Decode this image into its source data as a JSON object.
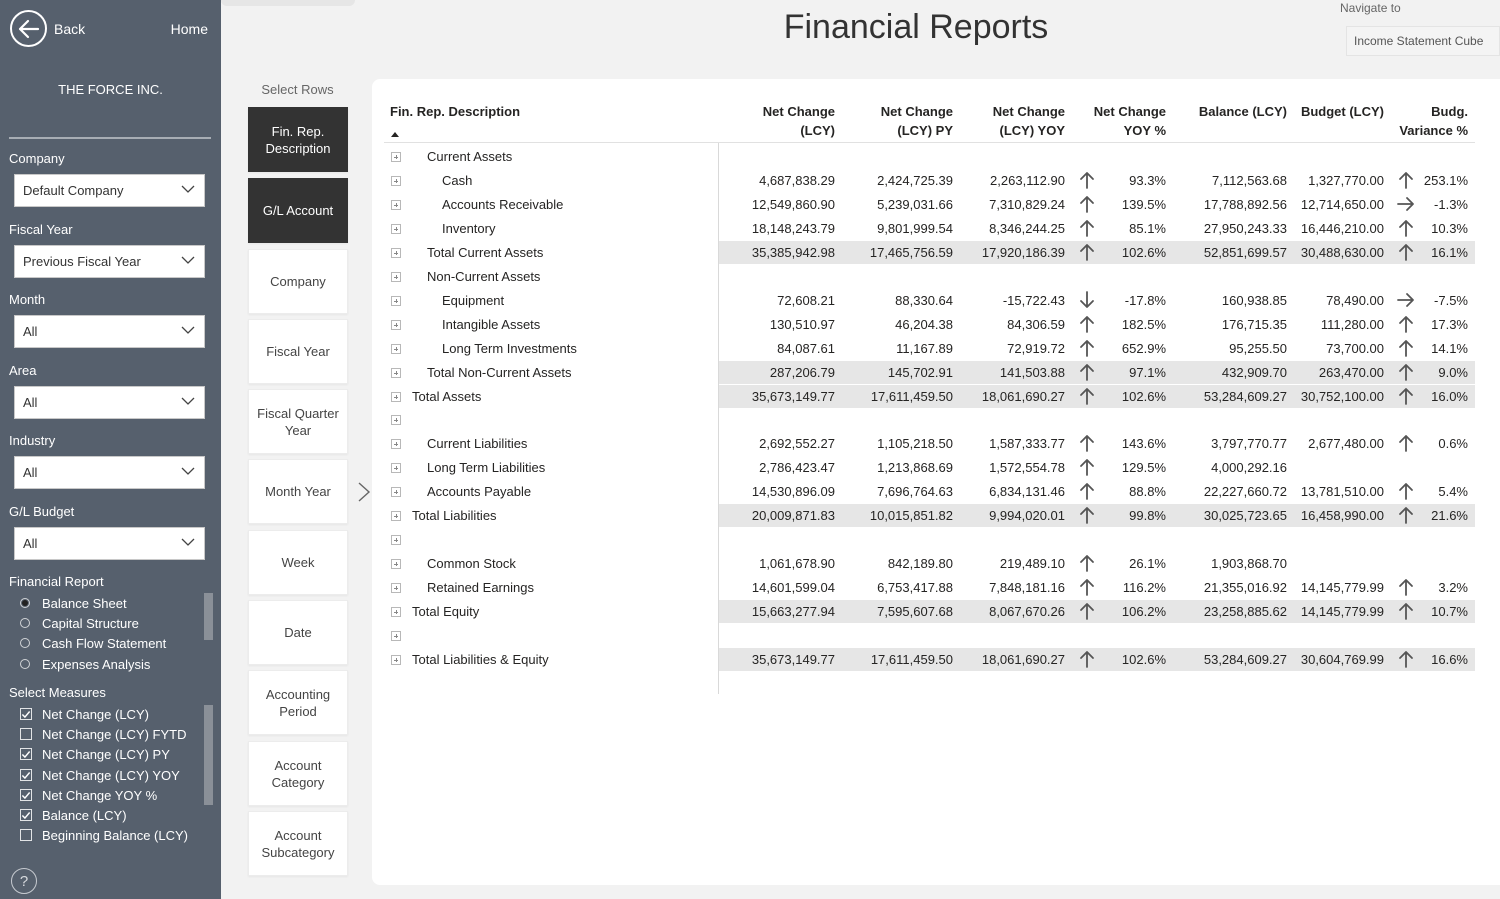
{
  "sidebar": {
    "back_label": "Back",
    "home_label": "Home",
    "company_name": "THE FORCE INC.",
    "filters": [
      {
        "label": "Company",
        "value": "Default Company"
      },
      {
        "label": "Fiscal Year",
        "value": "Previous Fiscal Year"
      },
      {
        "label": "Month",
        "value": "All"
      },
      {
        "label": "Area",
        "value": "All"
      },
      {
        "label": "Industry",
        "value": "All"
      },
      {
        "label": "G/L Budget",
        "value": "All"
      }
    ],
    "financial_report_label": "Financial Report",
    "financial_reports": [
      {
        "label": "Balance Sheet",
        "selected": true
      },
      {
        "label": "Capital Structure",
        "selected": false
      },
      {
        "label": "Cash Flow Statement",
        "selected": false
      },
      {
        "label": "Expenses Analysis",
        "selected": false
      }
    ],
    "select_measures_label": "Select Measures",
    "measures": [
      {
        "label": "Net Change (LCY)",
        "checked": true
      },
      {
        "label": "Net Change (LCY) FYTD",
        "checked": false
      },
      {
        "label": "Net Change (LCY) PY",
        "checked": true
      },
      {
        "label": "Net Change (LCY) YOY",
        "checked": true
      },
      {
        "label": "Net Change YOY %",
        "checked": true
      },
      {
        "label": "Balance (LCY)",
        "checked": true
      },
      {
        "label": "Beginning Balance (LCY)",
        "checked": false
      }
    ],
    "help_glyph": "?"
  },
  "header": {
    "title": "Financial Reports",
    "navigate_label": "Navigate to",
    "navigate_value": "Income Statement Cube"
  },
  "select_rows": {
    "label": "Select Rows",
    "buttons": [
      {
        "label": "Fin. Rep. Description",
        "selected": true
      },
      {
        "label": "G/L Account",
        "selected": true
      },
      {
        "label": "Company",
        "selected": false
      },
      {
        "label": "Fiscal Year",
        "selected": false
      },
      {
        "label": "Fiscal Quarter Year",
        "selected": false
      },
      {
        "label": "Month Year",
        "selected": false
      },
      {
        "label": "Week",
        "selected": false
      },
      {
        "label": "Date",
        "selected": false
      },
      {
        "label": "Accounting Period",
        "selected": false
      },
      {
        "label": "Account Category",
        "selected": false
      },
      {
        "label": "Account Subcategory",
        "selected": false
      }
    ]
  },
  "matrix": {
    "columns": [
      "Fin. Rep. Description",
      "Net Change (LCY)",
      "Net Change (LCY) PY",
      "Net Change (LCY) YOY",
      "Net Change YOY %",
      "Balance (LCY)",
      "Budget (LCY)",
      "Budg. Variance %"
    ],
    "rows": [
      {
        "desc": "Current Assets",
        "level": 1,
        "total": false,
        "nc": "",
        "py": "",
        "yoy": "",
        "yoy_arrow": "",
        "yoy_pct": "",
        "bal": "",
        "bud": "",
        "bud_arrow": "",
        "var": ""
      },
      {
        "desc": "Cash",
        "level": 2,
        "total": false,
        "nc": "4,687,838.29",
        "py": "2,424,725.39",
        "yoy": "2,263,112.90",
        "yoy_arrow": "up",
        "yoy_pct": "93.3%",
        "bal": "7,112,563.68",
        "bud": "1,327,770.00",
        "bud_arrow": "up",
        "var": "253.1%"
      },
      {
        "desc": "Accounts Receivable",
        "level": 2,
        "total": false,
        "nc": "12,549,860.90",
        "py": "5,239,031.66",
        "yoy": "7,310,829.24",
        "yoy_arrow": "up",
        "yoy_pct": "139.5%",
        "bal": "17,788,892.56",
        "bud": "12,714,650.00",
        "bud_arrow": "right",
        "var": "-1.3%"
      },
      {
        "desc": "Inventory",
        "level": 2,
        "total": false,
        "nc": "18,148,243.79",
        "py": "9,801,999.54",
        "yoy": "8,346,244.25",
        "yoy_arrow": "up",
        "yoy_pct": "85.1%",
        "bal": "27,950,243.33",
        "bud": "16,446,210.00",
        "bud_arrow": "up",
        "var": "10.3%"
      },
      {
        "desc": "Total Current Assets",
        "level": 1,
        "total": true,
        "nc": "35,385,942.98",
        "py": "17,465,756.59",
        "yoy": "17,920,186.39",
        "yoy_arrow": "up",
        "yoy_pct": "102.6%",
        "bal": "52,851,699.57",
        "bud": "30,488,630.00",
        "bud_arrow": "up",
        "var": "16.1%"
      },
      {
        "desc": "Non-Current Assets",
        "level": 1,
        "total": false,
        "nc": "",
        "py": "",
        "yoy": "",
        "yoy_arrow": "",
        "yoy_pct": "",
        "bal": "",
        "bud": "",
        "bud_arrow": "",
        "var": ""
      },
      {
        "desc": "Equipment",
        "level": 2,
        "total": false,
        "nc": "72,608.21",
        "py": "88,330.64",
        "yoy": "-15,722.43",
        "yoy_arrow": "down",
        "yoy_pct": "-17.8%",
        "bal": "160,938.85",
        "bud": "78,490.00",
        "bud_arrow": "right",
        "var": "-7.5%"
      },
      {
        "desc": "Intangible Assets",
        "level": 2,
        "total": false,
        "nc": "130,510.97",
        "py": "46,204.38",
        "yoy": "84,306.59",
        "yoy_arrow": "up",
        "yoy_pct": "182.5%",
        "bal": "176,715.35",
        "bud": "111,280.00",
        "bud_arrow": "up",
        "var": "17.3%"
      },
      {
        "desc": "Long Term Investments",
        "level": 2,
        "total": false,
        "nc": "84,087.61",
        "py": "11,167.89",
        "yoy": "72,919.72",
        "yoy_arrow": "up",
        "yoy_pct": "652.9%",
        "bal": "95,255.50",
        "bud": "73,700.00",
        "bud_arrow": "up",
        "var": "14.1%"
      },
      {
        "desc": "Total Non-Current Assets",
        "level": 1,
        "total": true,
        "nc": "287,206.79",
        "py": "145,702.91",
        "yoy": "141,503.88",
        "yoy_arrow": "up",
        "yoy_pct": "97.1%",
        "bal": "432,909.70",
        "bud": "263,470.00",
        "bud_arrow": "up",
        "var": "9.0%"
      },
      {
        "desc": "Total Assets",
        "level": 0,
        "total": true,
        "nc": "35,673,149.77",
        "py": "17,611,459.50",
        "yoy": "18,061,690.27",
        "yoy_arrow": "up",
        "yoy_pct": "102.6%",
        "bal": "53,284,609.27",
        "bud": "30,752,100.00",
        "bud_arrow": "up",
        "var": "16.0%"
      },
      {
        "desc": "",
        "level": 0,
        "total": false,
        "nc": "",
        "py": "",
        "yoy": "",
        "yoy_arrow": "",
        "yoy_pct": "",
        "bal": "",
        "bud": "",
        "bud_arrow": "",
        "var": ""
      },
      {
        "desc": "Current Liabilities",
        "level": 1,
        "total": false,
        "nc": "2,692,552.27",
        "py": "1,105,218.50",
        "yoy": "1,587,333.77",
        "yoy_arrow": "up",
        "yoy_pct": "143.6%",
        "bal": "3,797,770.77",
        "bud": "2,677,480.00",
        "bud_arrow": "up",
        "var": "0.6%"
      },
      {
        "desc": "Long Term Liabilities",
        "level": 1,
        "total": false,
        "nc": "2,786,423.47",
        "py": "1,213,868.69",
        "yoy": "1,572,554.78",
        "yoy_arrow": "up",
        "yoy_pct": "129.5%",
        "bal": "4,000,292.16",
        "bud": "",
        "bud_arrow": "",
        "var": ""
      },
      {
        "desc": "Accounts Payable",
        "level": 1,
        "total": false,
        "nc": "14,530,896.09",
        "py": "7,696,764.63",
        "yoy": "6,834,131.46",
        "yoy_arrow": "up",
        "yoy_pct": "88.8%",
        "bal": "22,227,660.72",
        "bud": "13,781,510.00",
        "bud_arrow": "up",
        "var": "5.4%"
      },
      {
        "desc": "Total Liabilities",
        "level": 0,
        "total": true,
        "nc": "20,009,871.83",
        "py": "10,015,851.82",
        "yoy": "9,994,020.01",
        "yoy_arrow": "up",
        "yoy_pct": "99.8%",
        "bal": "30,025,723.65",
        "bud": "16,458,990.00",
        "bud_arrow": "up",
        "var": "21.6%"
      },
      {
        "desc": "",
        "level": 0,
        "total": false,
        "nc": "",
        "py": "",
        "yoy": "",
        "yoy_arrow": "",
        "yoy_pct": "",
        "bal": "",
        "bud": "",
        "bud_arrow": "",
        "var": ""
      },
      {
        "desc": "Common Stock",
        "level": 1,
        "total": false,
        "nc": "1,061,678.90",
        "py": "842,189.80",
        "yoy": "219,489.10",
        "yoy_arrow": "up",
        "yoy_pct": "26.1%",
        "bal": "1,903,868.70",
        "bud": "",
        "bud_arrow": "",
        "var": ""
      },
      {
        "desc": "Retained Earnings",
        "level": 1,
        "total": false,
        "nc": "14,601,599.04",
        "py": "6,753,417.88",
        "yoy": "7,848,181.16",
        "yoy_arrow": "up",
        "yoy_pct": "116.2%",
        "bal": "21,355,016.92",
        "bud": "14,145,779.99",
        "bud_arrow": "up",
        "var": "3.2%"
      },
      {
        "desc": "Total Equity",
        "level": 0,
        "total": true,
        "nc": "15,663,277.94",
        "py": "7,595,607.68",
        "yoy": "8,067,670.26",
        "yoy_arrow": "up",
        "yoy_pct": "106.2%",
        "bal": "23,258,885.62",
        "bud": "14,145,779.99",
        "bud_arrow": "up",
        "var": "10.7%"
      },
      {
        "desc": "",
        "level": 0,
        "total": false,
        "nc": "",
        "py": "",
        "yoy": "",
        "yoy_arrow": "",
        "yoy_pct": "",
        "bal": "",
        "bud": "",
        "bud_arrow": "",
        "var": ""
      },
      {
        "desc": "Total Liabilities & Equity",
        "level": 0,
        "total": true,
        "nc": "35,673,149.77",
        "py": "17,611,459.50",
        "yoy": "18,061,690.27",
        "yoy_arrow": "up",
        "yoy_pct": "102.6%",
        "bal": "53,284,609.27",
        "bud": "30,604,769.99",
        "bud_arrow": "up",
        "var": "16.6%"
      }
    ]
  }
}
